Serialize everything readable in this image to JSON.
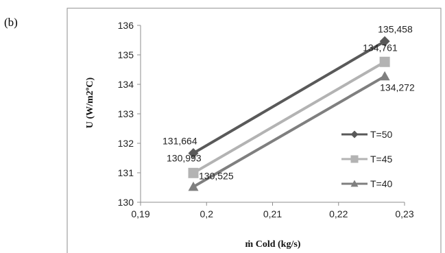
{
  "panel_label": "(b)",
  "chart_data": {
    "type": "line",
    "title": "",
    "xlabel": "ṁ Cold (kg/s)",
    "ylabel": "U (W/m2ºC)",
    "xlim": [
      0.19,
      0.23
    ],
    "ylim": [
      130,
      136
    ],
    "xticks": [
      0.19,
      0.2,
      0.21,
      0.22,
      0.23
    ],
    "xtick_labels": [
      "0,19",
      "0,2",
      "0,21",
      "0,22",
      "0,23"
    ],
    "yticks": [
      130,
      131,
      132,
      133,
      134,
      135,
      136
    ],
    "ytick_labels": [
      "130",
      "131",
      "132",
      "133",
      "134",
      "135",
      "136"
    ],
    "grid": false,
    "legend_position": "right",
    "series": [
      {
        "name": "T=50",
        "marker": "diamond",
        "color": "#595959",
        "x": [
          0.198,
          0.227
        ],
        "y": [
          131.664,
          135.458
        ],
        "labels": [
          "131,664",
          "135,458"
        ]
      },
      {
        "name": "T=45",
        "marker": "square",
        "color": "#b3b3b3",
        "x": [
          0.198,
          0.227
        ],
        "y": [
          130.993,
          134.761
        ],
        "labels": [
          "130,993",
          "134,761"
        ]
      },
      {
        "name": "T=40",
        "marker": "triangle",
        "color": "#7f7f7f",
        "x": [
          0.198,
          0.227
        ],
        "y": [
          130.525,
          134.272
        ],
        "labels": [
          "130,525",
          "134,272"
        ]
      }
    ]
  }
}
